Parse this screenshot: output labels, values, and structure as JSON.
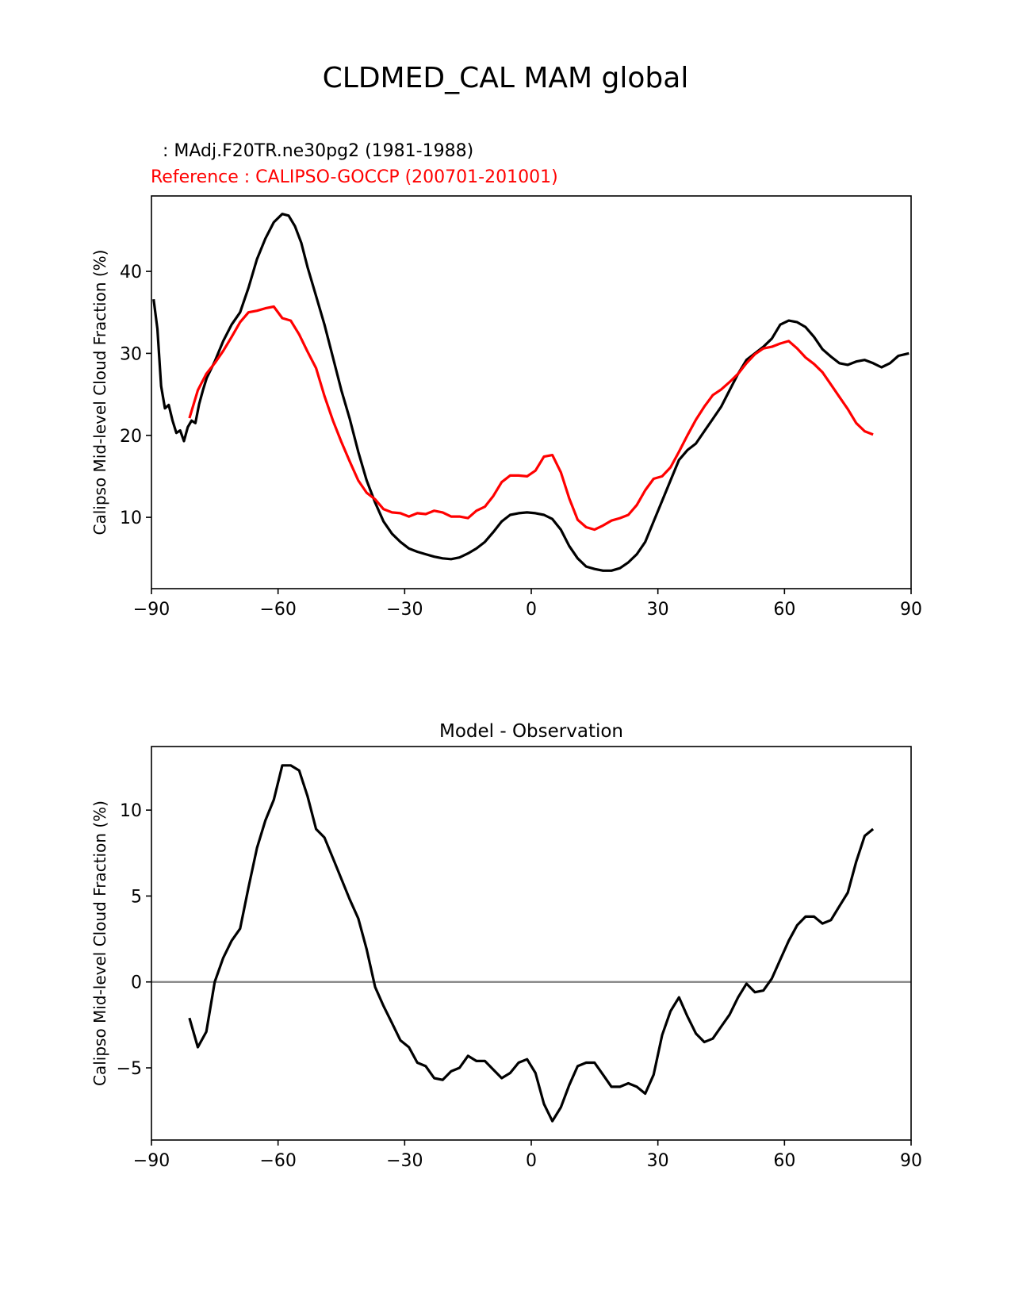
{
  "suptitle": "CLDMED_CAL MAM global",
  "test_label": ": MAdj.F20TR.ne30pg2 (1981-1988)",
  "reference_label": "Reference : CALIPSO-GOCCP (200701-201001)",
  "colors": {
    "test": "#000000",
    "reference": "#ff0000",
    "zero_line": "#808080",
    "axes": "#000000"
  },
  "chart_data": [
    {
      "type": "line",
      "title": "",
      "xlabel": "",
      "ylabel": "Calipso Mid-level Cloud Fraction (%)",
      "xlim": [
        -90,
        90
      ],
      "ylim": [
        1.3,
        49.2
      ],
      "xticks": [
        -90,
        -60,
        -30,
        0,
        30,
        60,
        90
      ],
      "xtick_labels": [
        "−90",
        "−60",
        "−30",
        "0",
        "30",
        "60",
        "90"
      ],
      "yticks": [
        10,
        20,
        30,
        40
      ],
      "ytick_labels": [
        "10",
        "20",
        "30",
        "40"
      ],
      "series": [
        {
          "name": "MAdj.F20TR.ne30pg2 (1981-1988)",
          "color": "#000000",
          "points": [
            [
              -89.5,
              36.6
            ],
            [
              -88.6,
              33.0
            ],
            [
              -87.7,
              26.0
            ],
            [
              -86.8,
              23.3
            ],
            [
              -85.9,
              23.7
            ],
            [
              -85.0,
              21.8
            ],
            [
              -84.1,
              20.3
            ],
            [
              -83.2,
              20.6
            ],
            [
              -82.3,
              19.3
            ],
            [
              -81.4,
              21.0
            ],
            [
              -80.5,
              21.8
            ],
            [
              -79.6,
              21.5
            ],
            [
              -78.7,
              23.8
            ],
            [
              -77.8,
              25.5
            ],
            [
              -76.9,
              27.0
            ],
            [
              -75.0,
              29.0
            ],
            [
              -73.0,
              31.5
            ],
            [
              -71.0,
              33.5
            ],
            [
              -69.0,
              35.0
            ],
            [
              -67.0,
              38.0
            ],
            [
              -65.0,
              41.5
            ],
            [
              -63.0,
              44.0
            ],
            [
              -61.0,
              46.0
            ],
            [
              -59.0,
              47.0
            ],
            [
              -57.5,
              46.8
            ],
            [
              -56.0,
              45.5
            ],
            [
              -54.5,
              43.5
            ],
            [
              -53.0,
              40.5
            ],
            [
              -51.0,
              37.0
            ],
            [
              -49.0,
              33.5
            ],
            [
              -47.0,
              29.5
            ],
            [
              -45.0,
              25.5
            ],
            [
              -43.0,
              22.0
            ],
            [
              -41.0,
              18.0
            ],
            [
              -39.0,
              14.5
            ],
            [
              -37.0,
              11.8
            ],
            [
              -35.0,
              9.5
            ],
            [
              -33.0,
              8.0
            ],
            [
              -31.0,
              7.0
            ],
            [
              -29.0,
              6.2
            ],
            [
              -27.0,
              5.8
            ],
            [
              -25.0,
              5.5
            ],
            [
              -23.0,
              5.2
            ],
            [
              -21.0,
              5.0
            ],
            [
              -19.0,
              4.9
            ],
            [
              -17.0,
              5.1
            ],
            [
              -15.0,
              5.6
            ],
            [
              -13.0,
              6.2
            ],
            [
              -11.0,
              7.0
            ],
            [
              -9.0,
              8.2
            ],
            [
              -7.0,
              9.5
            ],
            [
              -5.0,
              10.3
            ],
            [
              -3.0,
              10.5
            ],
            [
              -1.0,
              10.6
            ],
            [
              1.0,
              10.5
            ],
            [
              3.0,
              10.3
            ],
            [
              5.0,
              9.8
            ],
            [
              7.0,
              8.5
            ],
            [
              9.0,
              6.5
            ],
            [
              11.0,
              5.0
            ],
            [
              13.0,
              4.0
            ],
            [
              15.0,
              3.7
            ],
            [
              17.0,
              3.5
            ],
            [
              19.0,
              3.5
            ],
            [
              21.0,
              3.8
            ],
            [
              23.0,
              4.5
            ],
            [
              25.0,
              5.5
            ],
            [
              27.0,
              7.0
            ],
            [
              29.0,
              9.5
            ],
            [
              31.0,
              12.0
            ],
            [
              33.0,
              14.5
            ],
            [
              35.0,
              17.0
            ],
            [
              37.0,
              18.2
            ],
            [
              39.0,
              19.0
            ],
            [
              41.0,
              20.5
            ],
            [
              43.0,
              22.0
            ],
            [
              45.0,
              23.5
            ],
            [
              47.0,
              25.5
            ],
            [
              49.0,
              27.5
            ],
            [
              51.0,
              29.2
            ],
            [
              53.0,
              30.0
            ],
            [
              55.0,
              30.8
            ],
            [
              57.0,
              31.8
            ],
            [
              59.0,
              33.5
            ],
            [
              61.0,
              34.0
            ],
            [
              63.0,
              33.8
            ],
            [
              65.0,
              33.2
            ],
            [
              67.0,
              32.0
            ],
            [
              69.0,
              30.5
            ],
            [
              71.0,
              29.6
            ],
            [
              73.0,
              28.8
            ],
            [
              75.0,
              28.6
            ],
            [
              77.0,
              29.0
            ],
            [
              79.0,
              29.2
            ],
            [
              81.0,
              28.8
            ],
            [
              83.0,
              28.3
            ],
            [
              85.0,
              28.8
            ],
            [
              87.0,
              29.7
            ],
            [
              89.5,
              30.0
            ]
          ]
        },
        {
          "name": "CALIPSO-GOCCP (200701-201001)",
          "color": "#ff0000",
          "points": [
            [
              -81.0,
              22.1
            ],
            [
              -79.0,
              25.5
            ],
            [
              -77.0,
              27.5
            ],
            [
              -75.0,
              28.8
            ],
            [
              -73.0,
              30.3
            ],
            [
              -71.0,
              32.0
            ],
            [
              -69.0,
              33.8
            ],
            [
              -67.0,
              35.0
            ],
            [
              -65.0,
              35.2
            ],
            [
              -63.0,
              35.5
            ],
            [
              -61.0,
              35.7
            ],
            [
              -59.0,
              34.3
            ],
            [
              -57.0,
              34.0
            ],
            [
              -55.0,
              32.3
            ],
            [
              -53.0,
              30.2
            ],
            [
              -51.0,
              28.2
            ],
            [
              -49.0,
              24.8
            ],
            [
              -47.0,
              21.8
            ],
            [
              -45.0,
              19.2
            ],
            [
              -43.0,
              16.8
            ],
            [
              -41.0,
              14.5
            ],
            [
              -39.0,
              13.0
            ],
            [
              -37.0,
              12.2
            ],
            [
              -35.0,
              11.0
            ],
            [
              -33.0,
              10.6
            ],
            [
              -31.0,
              10.5
            ],
            [
              -29.0,
              10.1
            ],
            [
              -27.0,
              10.5
            ],
            [
              -25.0,
              10.4
            ],
            [
              -23.0,
              10.8
            ],
            [
              -21.0,
              10.6
            ],
            [
              -19.0,
              10.1
            ],
            [
              -17.0,
              10.1
            ],
            [
              -15.0,
              9.9
            ],
            [
              -13.0,
              10.8
            ],
            [
              -11.0,
              11.3
            ],
            [
              -9.0,
              12.6
            ],
            [
              -7.0,
              14.3
            ],
            [
              -5.0,
              15.1
            ],
            [
              -3.0,
              15.1
            ],
            [
              -1.0,
              15.0
            ],
            [
              1.0,
              15.7
            ],
            [
              3.0,
              17.4
            ],
            [
              5.0,
              17.6
            ],
            [
              7.0,
              15.5
            ],
            [
              9.0,
              12.3
            ],
            [
              11.0,
              9.7
            ],
            [
              13.0,
              8.8
            ],
            [
              15.0,
              8.5
            ],
            [
              17.0,
              9.0
            ],
            [
              19.0,
              9.6
            ],
            [
              21.0,
              9.9
            ],
            [
              23.0,
              10.3
            ],
            [
              25.0,
              11.5
            ],
            [
              27.0,
              13.3
            ],
            [
              29.0,
              14.7
            ],
            [
              31.0,
              15.0
            ],
            [
              33.0,
              16.1
            ],
            [
              35.0,
              18.0
            ],
            [
              37.0,
              20.0
            ],
            [
              39.0,
              21.9
            ],
            [
              41.0,
              23.5
            ],
            [
              43.0,
              24.9
            ],
            [
              45.0,
              25.6
            ],
            [
              47.0,
              26.5
            ],
            [
              49.0,
              27.5
            ],
            [
              51.0,
              28.8
            ],
            [
              53.0,
              29.9
            ],
            [
              55.0,
              30.6
            ],
            [
              57.0,
              30.8
            ],
            [
              59.0,
              31.2
            ],
            [
              61.0,
              31.5
            ],
            [
              63.0,
              30.6
            ],
            [
              65.0,
              29.5
            ],
            [
              67.0,
              28.7
            ],
            [
              69.0,
              27.7
            ],
            [
              71.0,
              26.2
            ],
            [
              73.0,
              24.7
            ],
            [
              75.0,
              23.2
            ],
            [
              77.0,
              21.5
            ],
            [
              79.0,
              20.5
            ],
            [
              81.0,
              20.1
            ]
          ]
        }
      ]
    },
    {
      "type": "line",
      "title": "Model - Observation",
      "xlabel": "",
      "ylabel": "Calipso Mid-level Cloud Fraction (%)",
      "xlim": [
        -90,
        90
      ],
      "ylim": [
        -9.2,
        13.7
      ],
      "xticks": [
        -90,
        -60,
        -30,
        0,
        30,
        60,
        90
      ],
      "xtick_labels": [
        "−90",
        "−60",
        "−30",
        "0",
        "30",
        "60",
        "90"
      ],
      "yticks": [
        -5,
        0,
        5,
        10
      ],
      "ytick_labels": [
        "−5",
        "0",
        "5",
        "10"
      ],
      "zero_line": 0,
      "series": [
        {
          "name": "Model - Observation",
          "color": "#000000",
          "points": [
            [
              -81.0,
              -2.1
            ],
            [
              -79.0,
              -3.8
            ],
            [
              -77.0,
              -2.9
            ],
            [
              -75.0,
              0.0
            ],
            [
              -73.0,
              1.4
            ],
            [
              -71.0,
              2.4
            ],
            [
              -69.0,
              3.1
            ],
            [
              -67.0,
              5.5
            ],
            [
              -65.0,
              7.8
            ],
            [
              -63.0,
              9.4
            ],
            [
              -61.0,
              10.6
            ],
            [
              -59.0,
              12.6
            ],
            [
              -57.0,
              12.6
            ],
            [
              -55.0,
              12.3
            ],
            [
              -53.0,
              10.8
            ],
            [
              -51.0,
              8.9
            ],
            [
              -49.0,
              8.4
            ],
            [
              -47.0,
              7.2
            ],
            [
              -45.0,
              6.0
            ],
            [
              -43.0,
              4.8
            ],
            [
              -41.0,
              3.7
            ],
            [
              -39.0,
              1.9
            ],
            [
              -37.0,
              -0.3
            ],
            [
              -35.0,
              -1.4
            ],
            [
              -33.0,
              -2.4
            ],
            [
              -31.0,
              -3.4
            ],
            [
              -29.0,
              -3.8
            ],
            [
              -27.0,
              -4.7
            ],
            [
              -25.0,
              -4.9
            ],
            [
              -23.0,
              -5.6
            ],
            [
              -21.0,
              -5.7
            ],
            [
              -19.0,
              -5.2
            ],
            [
              -17.0,
              -5.0
            ],
            [
              -15.0,
              -4.3
            ],
            [
              -13.0,
              -4.6
            ],
            [
              -11.0,
              -4.6
            ],
            [
              -9.0,
              -5.1
            ],
            [
              -7.0,
              -5.6
            ],
            [
              -5.0,
              -5.3
            ],
            [
              -3.0,
              -4.7
            ],
            [
              -1.0,
              -4.5
            ],
            [
              1.0,
              -5.3
            ],
            [
              3.0,
              -7.1
            ],
            [
              5.0,
              -8.1
            ],
            [
              7.0,
              -7.3
            ],
            [
              9.0,
              -6.0
            ],
            [
              11.0,
              -4.9
            ],
            [
              13.0,
              -4.7
            ],
            [
              15.0,
              -4.7
            ],
            [
              17.0,
              -5.4
            ],
            [
              19.0,
              -6.1
            ],
            [
              21.0,
              -6.1
            ],
            [
              23.0,
              -5.9
            ],
            [
              25.0,
              -6.1
            ],
            [
              27.0,
              -6.5
            ],
            [
              29.0,
              -5.4
            ],
            [
              31.0,
              -3.1
            ],
            [
              33.0,
              -1.7
            ],
            [
              35.0,
              -0.9
            ],
            [
              37.0,
              -2.0
            ],
            [
              39.0,
              -3.0
            ],
            [
              41.0,
              -3.5
            ],
            [
              43.0,
              -3.3
            ],
            [
              45.0,
              -2.6
            ],
            [
              47.0,
              -1.9
            ],
            [
              49.0,
              -0.9
            ],
            [
              51.0,
              -0.1
            ],
            [
              53.0,
              -0.6
            ],
            [
              55.0,
              -0.5
            ],
            [
              57.0,
              0.2
            ],
            [
              59.0,
              1.3
            ],
            [
              61.0,
              2.4
            ],
            [
              63.0,
              3.3
            ],
            [
              65.0,
              3.8
            ],
            [
              67.0,
              3.8
            ],
            [
              69.0,
              3.4
            ],
            [
              71.0,
              3.6
            ],
            [
              73.0,
              4.4
            ],
            [
              75.0,
              5.2
            ],
            [
              77.0,
              7.0
            ],
            [
              79.0,
              8.5
            ],
            [
              81.0,
              8.9
            ]
          ]
        }
      ]
    }
  ]
}
